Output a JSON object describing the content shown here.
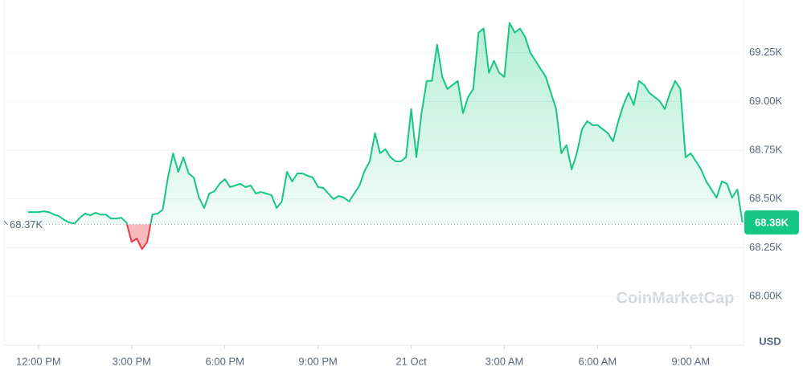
{
  "chart_data": {
    "type": "line",
    "categories": [
      null,
      null,
      "12:00 PM",
      null,
      null,
      null,
      null,
      null,
      null,
      null,
      null,
      null,
      null,
      null,
      null,
      null,
      null,
      null,
      null,
      null,
      "3:00 PM",
      null,
      null,
      null,
      null,
      null,
      null,
      null,
      null,
      null,
      null,
      null,
      null,
      null,
      null,
      null,
      null,
      null,
      "6:00 PM",
      null,
      null,
      null,
      null,
      null,
      null,
      null,
      null,
      null,
      null,
      null,
      null,
      null,
      null,
      null,
      null,
      null,
      "9:00 PM",
      null,
      null,
      null,
      null,
      null,
      null,
      null,
      null,
      null,
      null,
      null,
      null,
      null,
      null,
      null,
      null,
      null,
      "21 Oct",
      null,
      null,
      null,
      null,
      null,
      null,
      null,
      null,
      null,
      null,
      null,
      null,
      null,
      null,
      null,
      null,
      null,
      "3:00 AM",
      null,
      null,
      null,
      null,
      null,
      null,
      null,
      null,
      null,
      null,
      null,
      null,
      null,
      null,
      null,
      null,
      null,
      "6:00 AM",
      null,
      null,
      null,
      null,
      null,
      null,
      null,
      null,
      null,
      null,
      null,
      null,
      null,
      null,
      null,
      null,
      null,
      "9:00 AM",
      null,
      null,
      null,
      null,
      null,
      null,
      null,
      null,
      null,
      null
    ],
    "values": [
      68433,
      68433,
      68433,
      68437,
      68433,
      68420,
      68412,
      68392,
      68379,
      68375,
      68404,
      68425,
      68416,
      68429,
      68420,
      68420,
      68400,
      68400,
      68404,
      68379,
      68280,
      68297,
      68243,
      68280,
      68420,
      68425,
      68445,
      68610,
      68734,
      68639,
      68714,
      68631,
      68610,
      68507,
      68454,
      68528,
      68540,
      68578,
      68602,
      68561,
      68569,
      68578,
      68561,
      68569,
      68528,
      68536,
      68528,
      68520,
      68454,
      68487,
      68639,
      68590,
      68631,
      68631,
      68619,
      68610,
      68561,
      68557,
      68528,
      68499,
      68516,
      68507,
      68487,
      68528,
      68569,
      68644,
      68693,
      68837,
      68734,
      68755,
      68714,
      68693,
      68693,
      68714,
      68961,
      68714,
      68940,
      69105,
      69105,
      69291,
      69126,
      69064,
      69085,
      69105,
      68940,
      69023,
      69064,
      69353,
      69374,
      69147,
      69209,
      69147,
      69126,
      69403,
      69353,
      69374,
      69332,
      69250,
      69209,
      69167,
      69126,
      69044,
      68961,
      68734,
      68776,
      68652,
      68734,
      68858,
      68899,
      68879,
      68879,
      68858,
      68837,
      68796,
      68899,
      68982,
      69044,
      68982,
      69105,
      69085,
      69044,
      69023,
      69002,
      68961,
      69044,
      69105,
      69064,
      68714,
      68734,
      68693,
      68652,
      68590,
      68549,
      68507,
      68590,
      68578,
      68507,
      68549,
      68380
    ],
    "baseline": {
      "value": 68370,
      "label": "68.37K"
    },
    "last_price": {
      "value": 68380,
      "label": "68.38K"
    },
    "up_color": "#16c784",
    "down_color": "#ea3943",
    "ylim": [
      67750,
      69520
    ],
    "yticks": [
      {
        "value": 68000,
        "label": "68.00K"
      },
      {
        "value": 68250,
        "label": "68.25K"
      },
      {
        "value": 68500,
        "label": "68.50K"
      },
      {
        "value": 68750,
        "label": "68.75K"
      },
      {
        "value": 69000,
        "label": "69.00K"
      },
      {
        "value": 69250,
        "label": "69.25K"
      }
    ],
    "grid": true,
    "currency": "USD",
    "watermark": "CoinMarketCap"
  }
}
